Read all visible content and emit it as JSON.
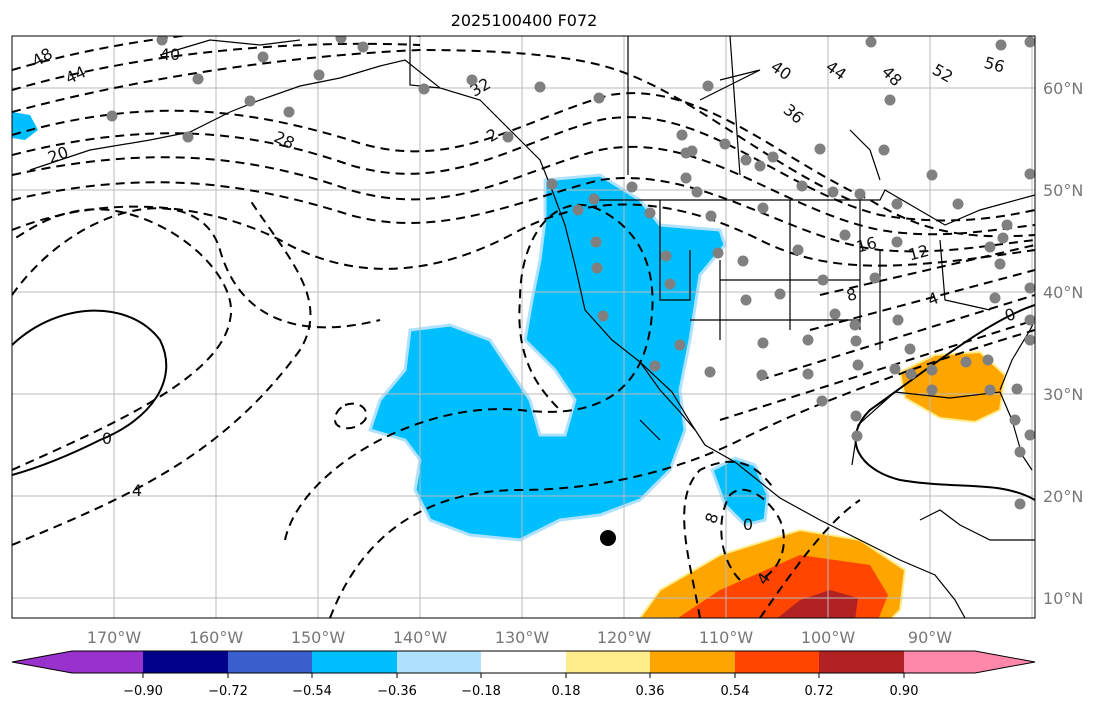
{
  "title": "2025100400 F072",
  "lon_labels": [
    "170°W",
    "160°W",
    "150°W",
    "140°W",
    "130°W",
    "120°W",
    "110°W",
    "100°W",
    "90°W"
  ],
  "lat_labels": [
    "60°N",
    "50°N",
    "40°N",
    "30°N",
    "20°N",
    "10°N"
  ],
  "contour_labels": [
    "48",
    "44",
    "40",
    "20",
    "28",
    "32",
    "2",
    "40",
    "36",
    "44",
    "48",
    "52",
    "56",
    "16",
    "12",
    "8",
    "4",
    "0",
    "0",
    "4",
    "8",
    "4",
    "0"
  ],
  "colorbar": {
    "colors": [
      "#9932cc",
      "#00008b",
      "#3a5fcd",
      "#00bfff",
      "#b0e2ff",
      "#ffffff",
      "#ffec8b",
      "#ffa500",
      "#ff4500",
      "#b22222",
      "#ff88aa"
    ],
    "ticks": [
      "−0.90",
      "−0.72",
      "−0.54",
      "−0.36",
      "−0.18",
      "0.18",
      "0.36",
      "0.54",
      "0.72",
      "0.90"
    ]
  },
  "colors": {
    "station": "#808080",
    "grid": "#bbbbbb",
    "coast": "#000000"
  }
}
